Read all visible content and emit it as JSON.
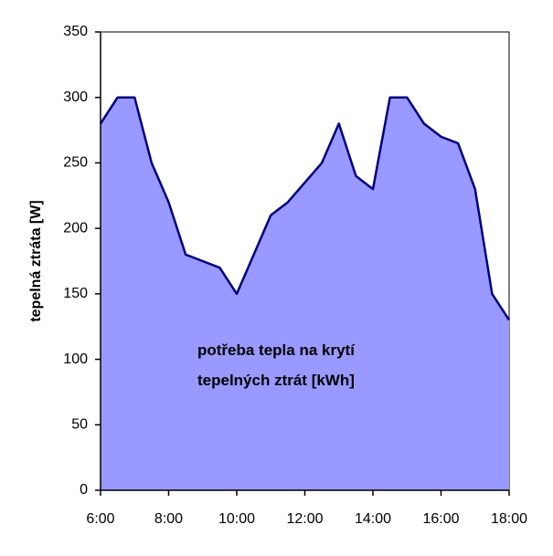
{
  "chart_data": {
    "type": "area",
    "title": "",
    "xlabel": "",
    "ylabel": "tepelná ztráta [W]",
    "xlim": [
      "6:00",
      "18:00"
    ],
    "ylim": [
      0,
      350
    ],
    "x_ticks": [
      "6:00",
      "8:00",
      "10:00",
      "12:00",
      "14:00",
      "16:00",
      "18:00"
    ],
    "y_ticks": [
      0,
      50,
      100,
      150,
      200,
      250,
      300,
      350
    ],
    "grid": false,
    "legend": "none",
    "series": [
      {
        "x": [
          "6:00",
          "6:30",
          "7:00",
          "7:30",
          "8:00",
          "8:30",
          "9:00",
          "9:30",
          "10:00",
          "10:30",
          "11:00",
          "11:30",
          "12:00",
          "12:30",
          "13:00",
          "13:30",
          "14:00",
          "14:30",
          "15:00",
          "15:30",
          "16:00",
          "16:30",
          "17:00",
          "17:30",
          "18:00"
        ],
        "values": [
          280,
          300,
          300,
          250,
          220,
          180,
          175,
          170,
          150,
          180,
          210,
          220,
          235,
          250,
          280,
          240,
          230,
          300,
          300,
          280,
          270,
          265,
          230,
          150,
          130
        ]
      }
    ],
    "annotation": {
      "line1": "potřeba tepla na krytí",
      "line2": "tepelných ztrát [kWh]"
    },
    "colors": {
      "fill": "#9999ff",
      "line": "#000080",
      "axis": "#000000"
    }
  }
}
